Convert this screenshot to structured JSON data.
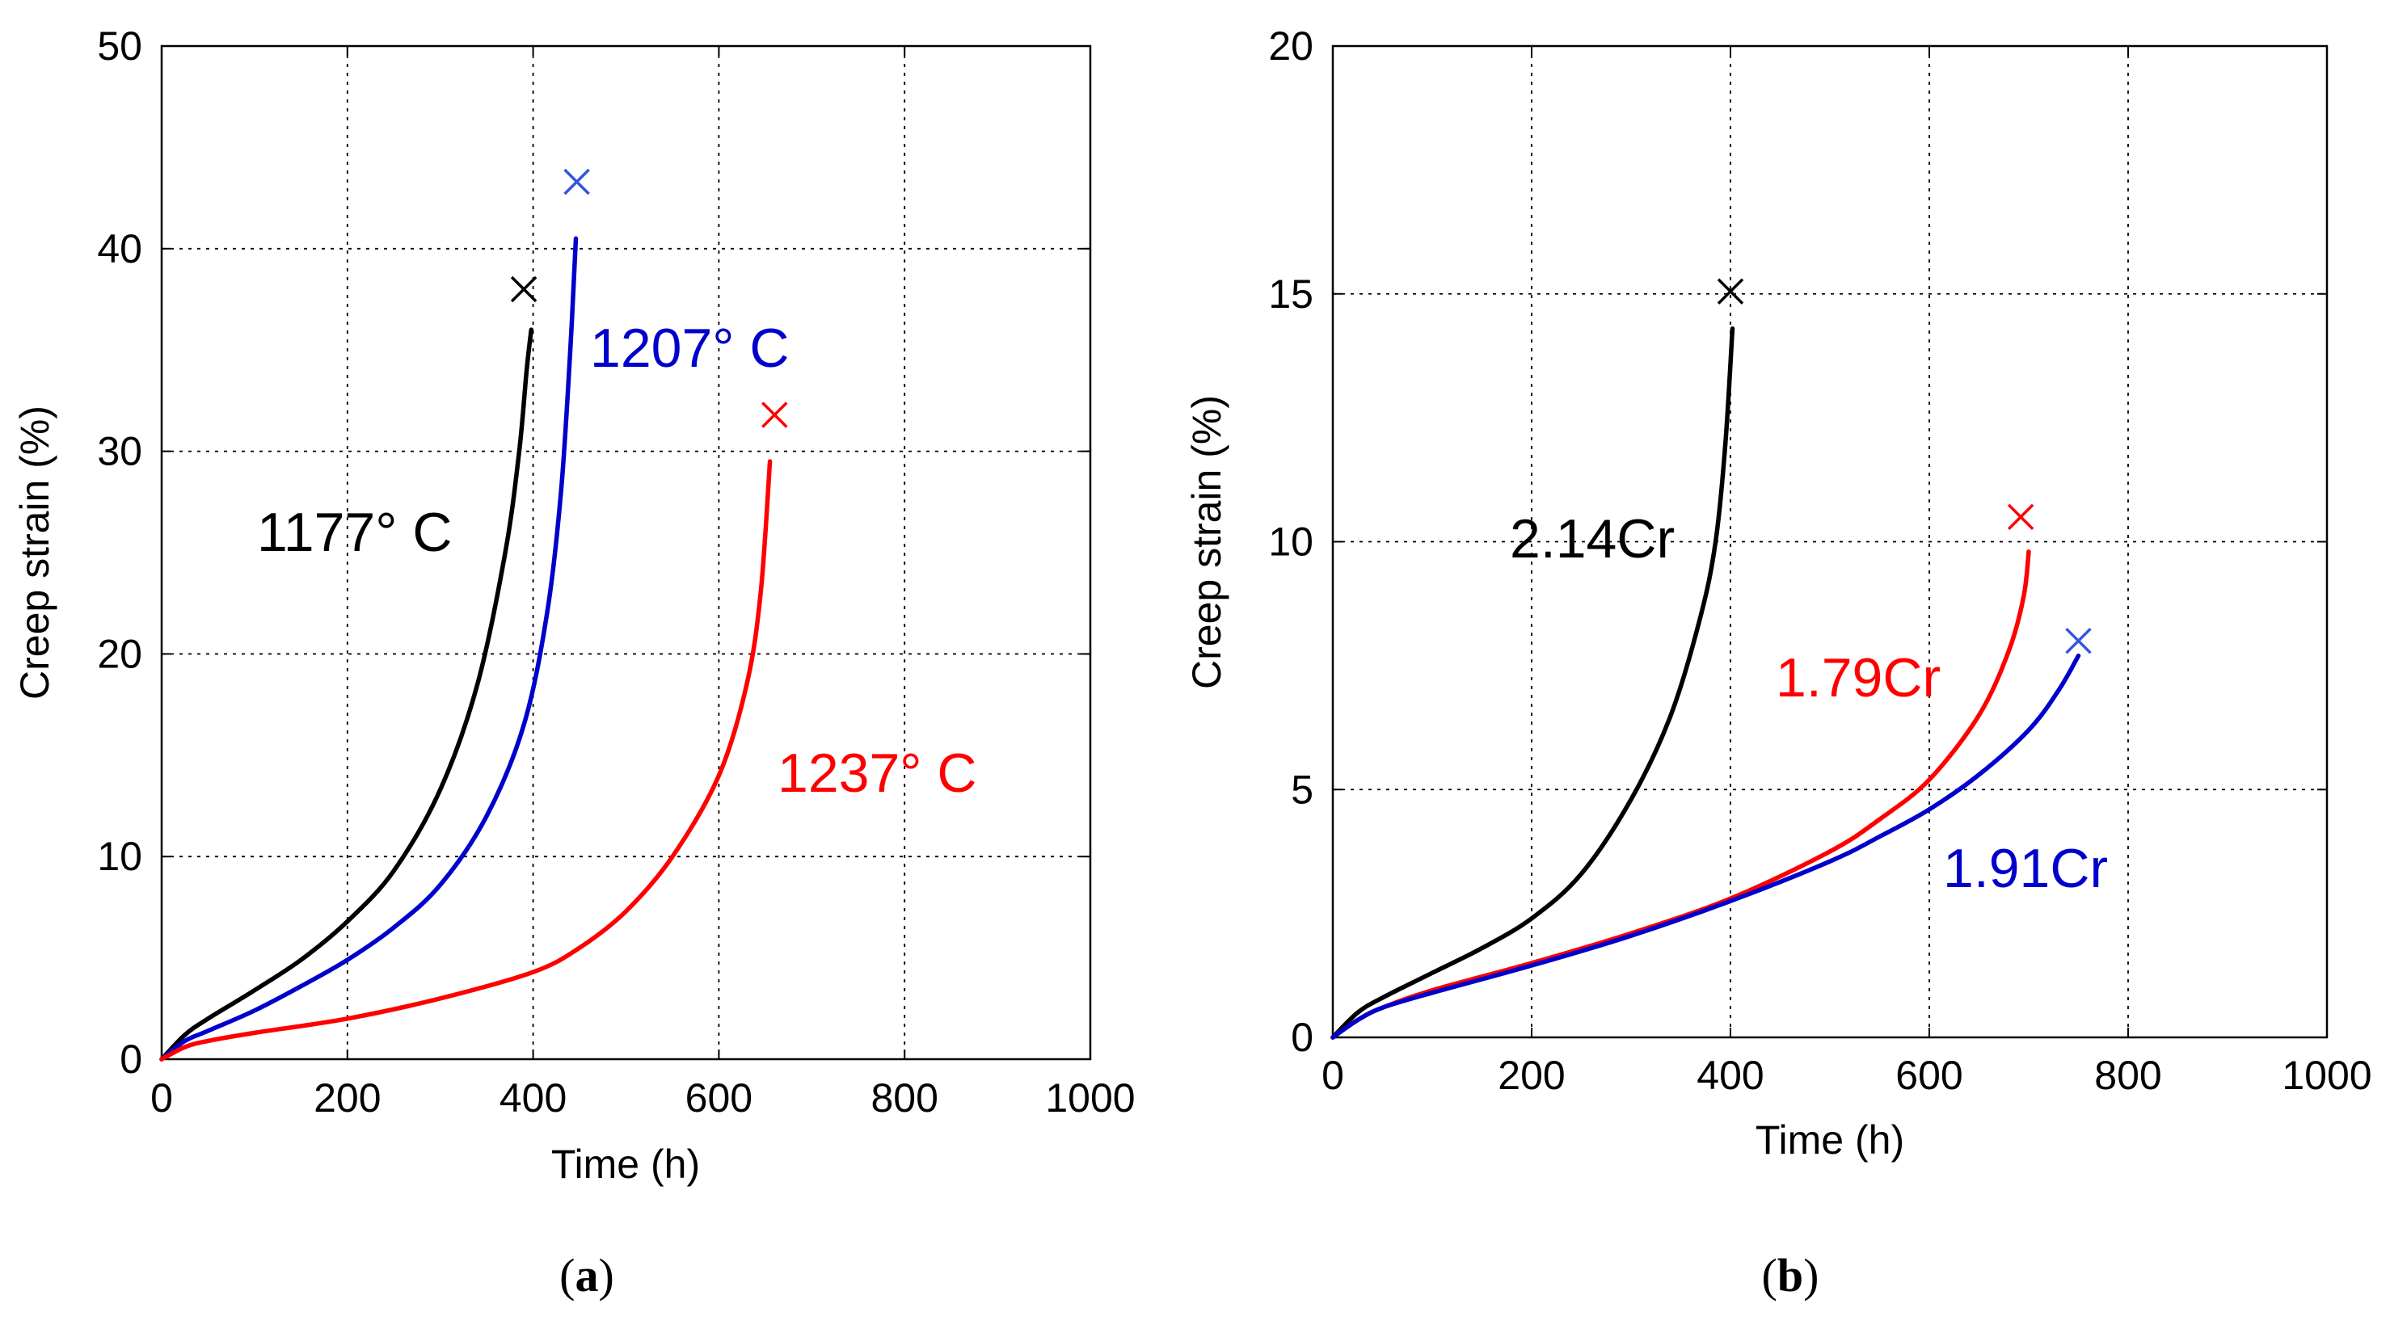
{
  "chart_data": [
    {
      "id": "a",
      "type": "line",
      "panel_label": "(a)",
      "panel_label_letter": "a",
      "title": "",
      "xlabel": "Time (h)",
      "ylabel": "Creep strain (%)",
      "xlim": [
        0,
        1000
      ],
      "ylim": [
        0,
        50
      ],
      "xticks": [
        0,
        200,
        400,
        600,
        800,
        1000
      ],
      "yticks": [
        0,
        10,
        20,
        30,
        40,
        50
      ],
      "grid": true,
      "series": [
        {
          "name": "1177° C",
          "color": "#000000",
          "x": [
            0,
            25,
            50,
            100,
            150,
            200,
            250,
            300,
            340,
            370,
            385,
            393,
            398
          ],
          "y": [
            0,
            1.2,
            2.0,
            3.4,
            4.9,
            6.8,
            9.3,
            13.3,
            18.5,
            25.0,
            30.0,
            34.0,
            36.0
          ],
          "rupture": {
            "x": 390,
            "y": 38
          }
        },
        {
          "name": "1207° C",
          "color": "#0000cc",
          "marker_color": "#3355dd",
          "x": [
            0,
            25,
            50,
            100,
            150,
            200,
            250,
            300,
            350,
            390,
            415,
            430,
            440,
            446
          ],
          "y": [
            0,
            0.9,
            1.4,
            2.4,
            3.6,
            4.9,
            6.5,
            8.6,
            12.0,
            16.5,
            22.0,
            28.0,
            35.0,
            40.5
          ],
          "rupture": {
            "x": 447,
            "y": 43.3
          }
        },
        {
          "name": "1237° C",
          "color": "#ff0000",
          "x": [
            0,
            25,
            50,
            100,
            200,
            300,
            400,
            450,
            500,
            550,
            600,
            630,
            645,
            655
          ],
          "y": [
            0,
            0.6,
            0.9,
            1.3,
            2.0,
            3.0,
            4.3,
            5.5,
            7.3,
            10.0,
            14.0,
            18.5,
            23.0,
            29.5
          ],
          "rupture": {
            "x": 660,
            "y": 31.8
          }
        }
      ]
    },
    {
      "id": "b",
      "type": "line",
      "panel_label": "(b)",
      "panel_label_letter": "b",
      "title": "",
      "xlabel": "Time (h)",
      "ylabel": "Creep strain (%)",
      "xlim": [
        0,
        1000
      ],
      "ylim": [
        0,
        20
      ],
      "xticks": [
        0,
        200,
        400,
        600,
        800,
        1000
      ],
      "yticks": [
        0,
        5,
        10,
        15,
        20
      ],
      "grid": true,
      "series": [
        {
          "name": "2.14Cr",
          "color": "#000000",
          "x": [
            0,
            25,
            50,
            100,
            150,
            200,
            250,
            300,
            340,
            370,
            385,
            395,
            402
          ],
          "y": [
            0,
            0.5,
            0.8,
            1.3,
            1.8,
            2.4,
            3.3,
            4.8,
            6.5,
            8.5,
            10.0,
            12.0,
            14.3
          ],
          "rupture": {
            "x": 400,
            "y": 15.05
          }
        },
        {
          "name": "1.79Cr",
          "color": "#ff0000",
          "x": [
            0,
            25,
            50,
            100,
            200,
            300,
            400,
            500,
            550,
            600,
            650,
            680,
            695,
            700
          ],
          "y": [
            0,
            0.35,
            0.6,
            0.95,
            1.5,
            2.1,
            2.8,
            3.75,
            4.4,
            5.2,
            6.5,
            7.8,
            8.9,
            9.8
          ],
          "rupture": {
            "x": 692,
            "y": 10.5
          }
        },
        {
          "name": "1.91Cr",
          "color": "#0000cc",
          "marker_color": "#3355dd",
          "x": [
            0,
            25,
            50,
            100,
            200,
            300,
            400,
            500,
            550,
            600,
            650,
            700,
            730,
            750
          ],
          "y": [
            0,
            0.35,
            0.6,
            0.9,
            1.45,
            2.05,
            2.75,
            3.55,
            4.05,
            4.6,
            5.3,
            6.2,
            7.0,
            7.7
          ],
          "rupture": {
            "x": 750,
            "y": 8.0
          }
        }
      ]
    }
  ]
}
